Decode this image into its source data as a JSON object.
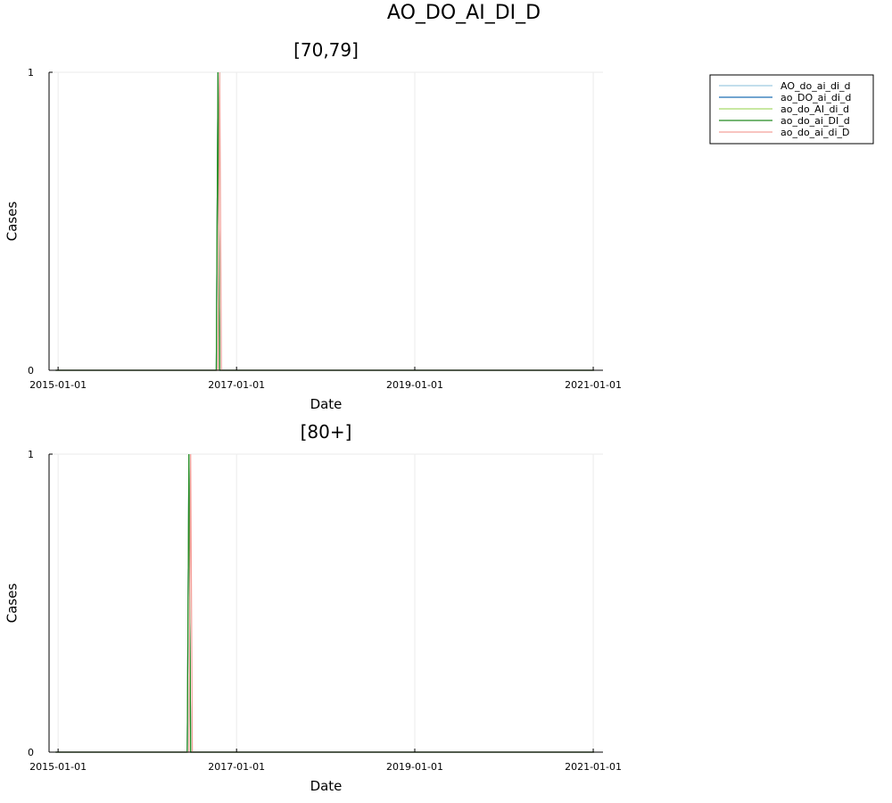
{
  "figure_title": "AO_DO_AI_DI_D",
  "chart_data": [
    {
      "type": "line",
      "title": "[70,79]",
      "xlabel": "Date",
      "ylabel": "Cases",
      "x_ticks": [
        "2015-01-01",
        "2017-01-01",
        "2019-01-01",
        "2021-01-01"
      ],
      "xlim": [
        "2014-11-25",
        "2021-02-10"
      ],
      "y_ticks": [
        "0",
        "1"
      ],
      "ylim": [
        0,
        1
      ],
      "grid": true,
      "legend": {
        "placement": "outside-top-right",
        "entries": [
          "AO_do_ai_di_d",
          "ao_DO_ai_di_d",
          "ao_do_AI_di_d",
          "ao_do_ai_DI_d",
          "ao_do_ai_di_D"
        ]
      },
      "series": [
        {
          "name": "AO_do_ai_di_d",
          "color": "#9ecae1",
          "x": [
            "2014-12-22",
            "2016-10-10",
            "2016-10-17",
            "2016-10-24",
            "2021-01-04"
          ],
          "y": [
            0,
            0,
            1,
            0,
            0
          ]
        },
        {
          "name": "ao_DO_ai_di_d",
          "color": "#1f6fb4",
          "x": [
            "2014-12-22",
            "2016-10-10",
            "2016-10-17",
            "2016-10-24",
            "2021-01-04"
          ],
          "y": [
            0,
            0,
            1,
            0,
            0
          ]
        },
        {
          "name": "ao_do_AI_di_d",
          "color": "#a6d96a",
          "x": [
            "2014-12-22",
            "2016-10-10",
            "2016-10-17",
            "2016-10-24",
            "2021-01-04"
          ],
          "y": [
            0,
            0,
            1,
            0,
            0
          ]
        },
        {
          "name": "ao_do_ai_DI_d",
          "color": "#238b22",
          "x": [
            "2014-12-22",
            "2016-10-10",
            "2016-10-17",
            "2016-10-24",
            "2021-01-04"
          ],
          "y": [
            0,
            0,
            1,
            0,
            0
          ]
        },
        {
          "name": "ao_do_ai_di_D",
          "color": "#f4a09a",
          "x": [
            "2014-12-22",
            "2016-10-17",
            "2016-10-24",
            "2016-10-31",
            "2021-01-04"
          ],
          "y": [
            0,
            0,
            1,
            0,
            0
          ]
        }
      ]
    },
    {
      "type": "line",
      "title": "[80+]",
      "xlabel": "Date",
      "ylabel": "Cases",
      "x_ticks": [
        "2015-01-01",
        "2017-01-01",
        "2019-01-01",
        "2021-01-01"
      ],
      "xlim": [
        "2014-11-25",
        "2021-02-10"
      ],
      "y_ticks": [
        "0",
        "1"
      ],
      "ylim": [
        0,
        1
      ],
      "grid": true,
      "series": [
        {
          "name": "AO_do_ai_di_d",
          "color": "#9ecae1",
          "x": [
            "2014-12-22",
            "2016-06-13",
            "2016-06-20",
            "2016-06-27",
            "2021-01-04"
          ],
          "y": [
            0,
            0,
            1,
            0,
            0
          ]
        },
        {
          "name": "ao_DO_ai_di_d",
          "color": "#1f6fb4",
          "x": [
            "2014-12-22",
            "2016-06-13",
            "2016-06-20",
            "2016-06-27",
            "2021-01-04"
          ],
          "y": [
            0,
            0,
            1,
            0,
            0
          ]
        },
        {
          "name": "ao_do_AI_di_d",
          "color": "#a6d96a",
          "x": [
            "2014-12-22",
            "2016-06-13",
            "2016-06-20",
            "2016-06-27",
            "2021-01-04"
          ],
          "y": [
            0,
            0,
            1,
            0,
            0
          ]
        },
        {
          "name": "ao_do_ai_DI_d",
          "color": "#238b22",
          "x": [
            "2014-12-22",
            "2016-06-13",
            "2016-06-20",
            "2016-06-27",
            "2021-01-04"
          ],
          "y": [
            0,
            0,
            1,
            0,
            0
          ]
        },
        {
          "name": "ao_do_ai_di_D",
          "color": "#f4a09a",
          "x": [
            "2014-12-22",
            "2016-06-20",
            "2016-06-27",
            "2016-07-04",
            "2021-01-04"
          ],
          "y": [
            0,
            0,
            1,
            0,
            0
          ]
        }
      ]
    }
  ]
}
